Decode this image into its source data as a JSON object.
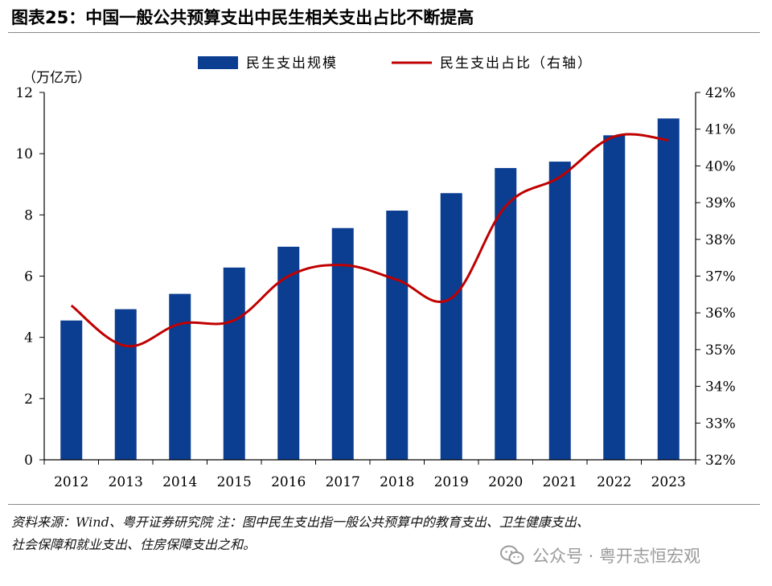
{
  "figure": {
    "title": "图表25：中国一般公共预算支出中民生相关支出占比不断提高",
    "source_note_line1": "资料来源：Wind、粤开证券研究院   注：图中民生支出指一般公共预算中的教育支出、卫生健康支出、",
    "source_note_line2": "社会保障和就业支出、住房保障支出之和。",
    "watermark": "公众号 · 粤开志恒宏观",
    "watermark_icon": "wechat-icon"
  },
  "chart_data": {
    "type": "bar",
    "categories": [
      "2012",
      "2013",
      "2014",
      "2015",
      "2016",
      "2017",
      "2018",
      "2019",
      "2020",
      "2021",
      "2022",
      "2023"
    ],
    "series": [
      {
        "name": "民生支出规模",
        "type": "bar",
        "axis": "left",
        "color": "#0B3D91",
        "values": [
          4.55,
          4.92,
          5.42,
          6.28,
          6.96,
          7.57,
          8.14,
          8.71,
          9.53,
          9.74,
          10.6,
          11.15
        ]
      },
      {
        "name": "民生支出占比（右轴）",
        "type": "line",
        "axis": "right",
        "color": "#C00000",
        "values": [
          36.2,
          35.1,
          35.7,
          35.8,
          37.0,
          37.3,
          36.9,
          36.4,
          38.9,
          39.7,
          40.8,
          40.7
        ]
      }
    ],
    "y_left": {
      "unit_label": "（万亿元）",
      "range": [
        0,
        12
      ],
      "ticks": [
        "0",
        "2",
        "4",
        "6",
        "8",
        "10",
        "12"
      ]
    },
    "y_right": {
      "range": [
        32,
        42
      ],
      "ticks": [
        "32%",
        "33%",
        "34%",
        "35%",
        "36%",
        "37%",
        "38%",
        "39%",
        "40%",
        "41%",
        "42%"
      ]
    },
    "grid": false,
    "legend_position": "top-center"
  }
}
